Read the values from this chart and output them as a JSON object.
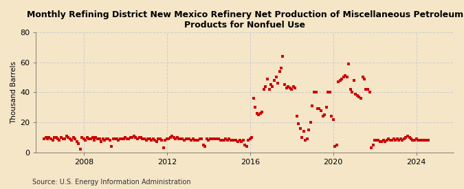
{
  "title": "Monthly Refining District New Mexico Refinery Net Production of Miscellaneous Petroleum\nProducts for Nonfuel Use",
  "ylabel": "Thousand Barrels",
  "source": "Source: U.S. Energy Information Administration",
  "fig_background_color": "#f5e6c8",
  "plot_background_color": "#f5e6c8",
  "marker_color": "#cc0000",
  "grid_color": "#cccccc",
  "ylim": [
    0,
    80
  ],
  "yticks": [
    0,
    20,
    40,
    60,
    80
  ],
  "xlim_start": 2005.7,
  "xlim_end": 2025.8,
  "xticks": [
    2008,
    2012,
    2016,
    2020,
    2024
  ],
  "title_fontsize": 9.5,
  "data": [
    [
      2006.08,
      9
    ],
    [
      2006.17,
      10
    ],
    [
      2006.25,
      9
    ],
    [
      2006.33,
      10
    ],
    [
      2006.42,
      9
    ],
    [
      2006.5,
      8
    ],
    [
      2006.58,
      10
    ],
    [
      2006.67,
      10
    ],
    [
      2006.75,
      9
    ],
    [
      2006.83,
      8
    ],
    [
      2006.92,
      10
    ],
    [
      2007.0,
      9
    ],
    [
      2007.08,
      9
    ],
    [
      2007.17,
      11
    ],
    [
      2007.25,
      10
    ],
    [
      2007.33,
      9
    ],
    [
      2007.42,
      8
    ],
    [
      2007.5,
      10
    ],
    [
      2007.58,
      9
    ],
    [
      2007.67,
      7
    ],
    [
      2007.75,
      6
    ],
    [
      2007.83,
      2
    ],
    [
      2007.92,
      10
    ],
    [
      2008.0,
      9
    ],
    [
      2008.08,
      8
    ],
    [
      2008.17,
      10
    ],
    [
      2008.25,
      9
    ],
    [
      2008.33,
      9
    ],
    [
      2008.42,
      10
    ],
    [
      2008.5,
      8
    ],
    [
      2008.58,
      10
    ],
    [
      2008.67,
      9
    ],
    [
      2008.75,
      9
    ],
    [
      2008.83,
      7
    ],
    [
      2008.92,
      9
    ],
    [
      2009.0,
      8
    ],
    [
      2009.08,
      9
    ],
    [
      2009.17,
      9
    ],
    [
      2009.25,
      8
    ],
    [
      2009.33,
      4
    ],
    [
      2009.42,
      9
    ],
    [
      2009.5,
      9
    ],
    [
      2009.58,
      9
    ],
    [
      2009.67,
      8
    ],
    [
      2009.75,
      9
    ],
    [
      2009.83,
      9
    ],
    [
      2009.92,
      9
    ],
    [
      2010.0,
      10
    ],
    [
      2010.08,
      9
    ],
    [
      2010.17,
      9
    ],
    [
      2010.25,
      10
    ],
    [
      2010.33,
      10
    ],
    [
      2010.42,
      11
    ],
    [
      2010.5,
      10
    ],
    [
      2010.58,
      9
    ],
    [
      2010.67,
      10
    ],
    [
      2010.75,
      10
    ],
    [
      2010.83,
      9
    ],
    [
      2010.92,
      9
    ],
    [
      2011.0,
      8
    ],
    [
      2011.08,
      9
    ],
    [
      2011.17,
      9
    ],
    [
      2011.25,
      8
    ],
    [
      2011.33,
      9
    ],
    [
      2011.42,
      8
    ],
    [
      2011.5,
      7
    ],
    [
      2011.58,
      9
    ],
    [
      2011.67,
      9
    ],
    [
      2011.75,
      8
    ],
    [
      2011.83,
      3
    ],
    [
      2011.92,
      8
    ],
    [
      2012.0,
      9
    ],
    [
      2012.08,
      9
    ],
    [
      2012.17,
      10
    ],
    [
      2012.25,
      11
    ],
    [
      2012.33,
      10
    ],
    [
      2012.42,
      9
    ],
    [
      2012.5,
      10
    ],
    [
      2012.58,
      9
    ],
    [
      2012.67,
      9
    ],
    [
      2012.75,
      9
    ],
    [
      2012.83,
      8
    ],
    [
      2012.92,
      9
    ],
    [
      2013.0,
      9
    ],
    [
      2013.08,
      9
    ],
    [
      2013.17,
      8
    ],
    [
      2013.25,
      9
    ],
    [
      2013.33,
      8
    ],
    [
      2013.42,
      8
    ],
    [
      2013.5,
      8
    ],
    [
      2013.58,
      9
    ],
    [
      2013.67,
      9
    ],
    [
      2013.75,
      5
    ],
    [
      2013.83,
      4
    ],
    [
      2013.92,
      9
    ],
    [
      2014.0,
      8
    ],
    [
      2014.08,
      9
    ],
    [
      2014.17,
      9
    ],
    [
      2014.25,
      9
    ],
    [
      2014.33,
      9
    ],
    [
      2014.42,
      9
    ],
    [
      2014.5,
      9
    ],
    [
      2014.58,
      8
    ],
    [
      2014.67,
      8
    ],
    [
      2014.75,
      8
    ],
    [
      2014.83,
      9
    ],
    [
      2014.92,
      8
    ],
    [
      2015.0,
      9
    ],
    [
      2015.08,
      8
    ],
    [
      2015.17,
      8
    ],
    [
      2015.25,
      8
    ],
    [
      2015.33,
      8
    ],
    [
      2015.42,
      7
    ],
    [
      2015.5,
      8
    ],
    [
      2015.58,
      7
    ],
    [
      2015.67,
      8
    ],
    [
      2015.75,
      5
    ],
    [
      2015.83,
      4
    ],
    [
      2015.92,
      8
    ],
    [
      2016.0,
      9
    ],
    [
      2016.08,
      10
    ],
    [
      2016.17,
      36
    ],
    [
      2016.25,
      30
    ],
    [
      2016.33,
      26
    ],
    [
      2016.42,
      25
    ],
    [
      2016.5,
      26
    ],
    [
      2016.58,
      27
    ],
    [
      2016.67,
      42
    ],
    [
      2016.75,
      44
    ],
    [
      2016.83,
      49
    ],
    [
      2016.92,
      42
    ],
    [
      2017.0,
      45
    ],
    [
      2017.08,
      44
    ],
    [
      2017.17,
      48
    ],
    [
      2017.25,
      50
    ],
    [
      2017.33,
      46
    ],
    [
      2017.42,
      54
    ],
    [
      2017.5,
      56
    ],
    [
      2017.58,
      64
    ],
    [
      2017.67,
      45
    ],
    [
      2017.75,
      43
    ],
    [
      2017.83,
      44
    ],
    [
      2017.92,
      43
    ],
    [
      2018.0,
      42
    ],
    [
      2018.08,
      44
    ],
    [
      2018.17,
      43
    ],
    [
      2018.25,
      24
    ],
    [
      2018.33,
      19
    ],
    [
      2018.42,
      16
    ],
    [
      2018.5,
      10
    ],
    [
      2018.58,
      14
    ],
    [
      2018.67,
      8
    ],
    [
      2018.75,
      9
    ],
    [
      2018.83,
      15
    ],
    [
      2018.92,
      20
    ],
    [
      2019.0,
      31
    ],
    [
      2019.08,
      40
    ],
    [
      2019.17,
      40
    ],
    [
      2019.25,
      29
    ],
    [
      2019.33,
      29
    ],
    [
      2019.42,
      28
    ],
    [
      2019.5,
      24
    ],
    [
      2019.58,
      25
    ],
    [
      2019.67,
      30
    ],
    [
      2019.75,
      40
    ],
    [
      2019.83,
      40
    ],
    [
      2019.92,
      24
    ],
    [
      2020.0,
      22
    ],
    [
      2020.08,
      4
    ],
    [
      2020.17,
      5
    ],
    [
      2020.25,
      47
    ],
    [
      2020.33,
      48
    ],
    [
      2020.42,
      49
    ],
    [
      2020.5,
      50
    ],
    [
      2020.58,
      51
    ],
    [
      2020.67,
      50
    ],
    [
      2020.75,
      59
    ],
    [
      2020.83,
      42
    ],
    [
      2020.92,
      40
    ],
    [
      2021.0,
      48
    ],
    [
      2021.08,
      39
    ],
    [
      2021.17,
      38
    ],
    [
      2021.25,
      37
    ],
    [
      2021.33,
      36
    ],
    [
      2021.42,
      50
    ],
    [
      2021.5,
      49
    ],
    [
      2021.58,
      42
    ],
    [
      2021.67,
      42
    ],
    [
      2021.75,
      40
    ],
    [
      2021.83,
      3
    ],
    [
      2021.92,
      5
    ],
    [
      2022.0,
      8
    ],
    [
      2022.08,
      8
    ],
    [
      2022.17,
      8
    ],
    [
      2022.25,
      7
    ],
    [
      2022.33,
      7
    ],
    [
      2022.42,
      8
    ],
    [
      2022.5,
      7
    ],
    [
      2022.58,
      8
    ],
    [
      2022.67,
      9
    ],
    [
      2022.75,
      8
    ],
    [
      2022.83,
      8
    ],
    [
      2022.92,
      9
    ],
    [
      2023.0,
      8
    ],
    [
      2023.08,
      9
    ],
    [
      2023.17,
      8
    ],
    [
      2023.25,
      9
    ],
    [
      2023.33,
      8
    ],
    [
      2023.42,
      9
    ],
    [
      2023.5,
      10
    ],
    [
      2023.58,
      11
    ],
    [
      2023.67,
      10
    ],
    [
      2023.75,
      9
    ],
    [
      2023.83,
      8
    ],
    [
      2023.92,
      8
    ],
    [
      2024.0,
      9
    ],
    [
      2024.08,
      8
    ],
    [
      2024.17,
      8
    ],
    [
      2024.25,
      8
    ],
    [
      2024.33,
      8
    ],
    [
      2024.42,
      8
    ],
    [
      2024.5,
      8
    ],
    [
      2024.58,
      8
    ]
  ]
}
